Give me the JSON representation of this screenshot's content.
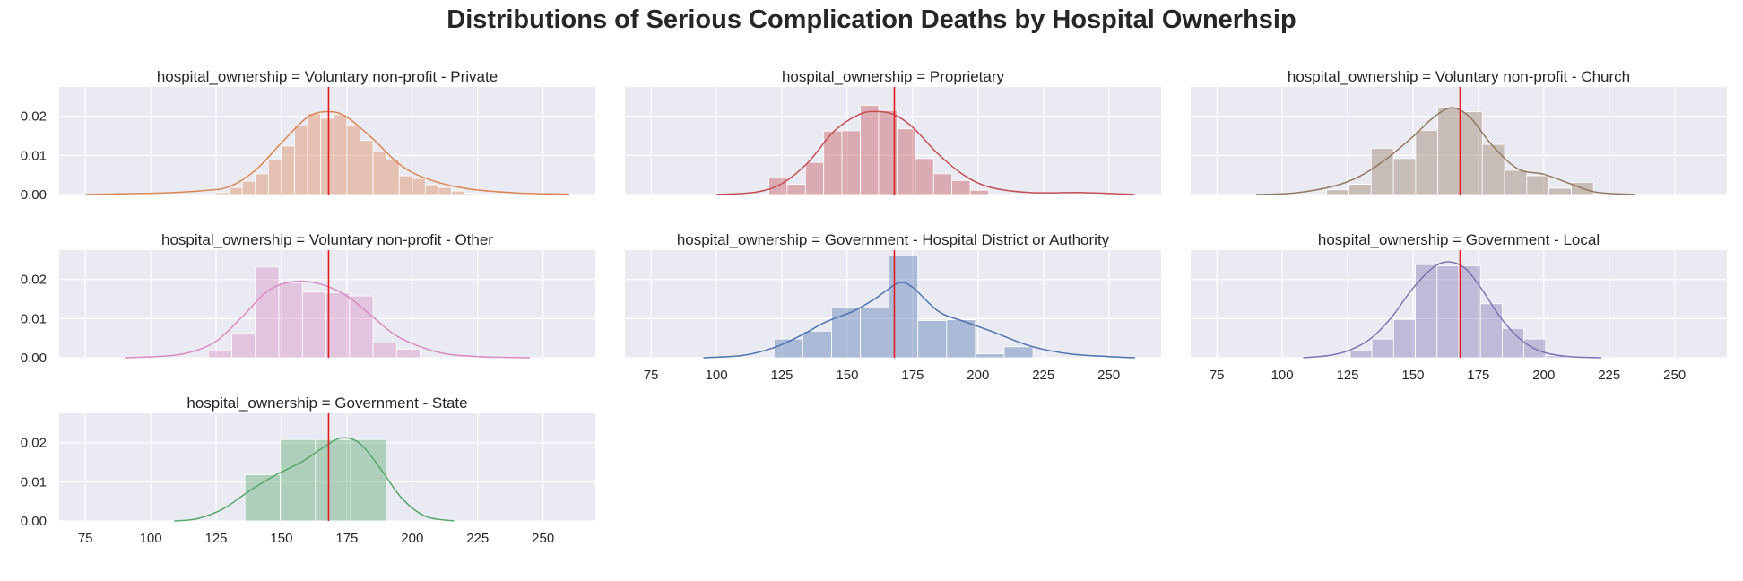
{
  "title": "Distributions of Serious Complication Deaths by Hospital Ownerhsip",
  "style": {
    "panel_background": "#eaeaf2",
    "grid_color": "#ffffff",
    "reference_line_color": "#e31a1c"
  },
  "chart_data": [
    {
      "type": "histogram",
      "title": "hospital_ownership = Voluntary non-profit - Private",
      "color": "#dd8452",
      "xlim": [
        65,
        270
      ],
      "ylim": [
        0,
        0.0275
      ],
      "xticks": [
        75,
        100,
        125,
        150,
        175,
        200,
        225,
        250
      ],
      "yticks": [
        0.0,
        0.01,
        0.02
      ],
      "ytick_labels": [
        "0.00",
        "0.01",
        "0.02"
      ],
      "show_xticks": false,
      "show_yticks": true,
      "reference_line": 168,
      "bins": {
        "edges": [
          125,
          130,
          135,
          140,
          145,
          150,
          155,
          160,
          165,
          170,
          175,
          180,
          185,
          190,
          195,
          200,
          205,
          210,
          215,
          220,
          225
        ],
        "values": [
          0.0005,
          0.0018,
          0.0034,
          0.0053,
          0.0089,
          0.0124,
          0.0175,
          0.0208,
          0.0195,
          0.0205,
          0.0178,
          0.0138,
          0.0109,
          0.0088,
          0.0048,
          0.0041,
          0.0025,
          0.0018,
          0.0009,
          0.0003
        ]
      },
      "kde": {
        "x": [
          75,
          90,
          105,
          120,
          130,
          140,
          150,
          160,
          168,
          175,
          185,
          195,
          205,
          220,
          240,
          260
        ],
        "y": [
          0.0,
          0.0002,
          0.0004,
          0.001,
          0.002,
          0.0062,
          0.0132,
          0.0198,
          0.0212,
          0.0198,
          0.0142,
          0.0078,
          0.0042,
          0.0016,
          0.0004,
          0.0001
        ]
      }
    },
    {
      "type": "histogram",
      "title": "hospital_ownership = Proprietary",
      "color": "#c44e52",
      "xlim": [
        65,
        270
      ],
      "ylim": [
        0,
        0.0275
      ],
      "xticks": [
        75,
        100,
        125,
        150,
        175,
        200,
        225,
        250
      ],
      "yticks": [
        0.0,
        0.01,
        0.02
      ],
      "ytick_labels": [
        "0.00",
        "0.01",
        "0.02"
      ],
      "show_xticks": false,
      "show_yticks": false,
      "reference_line": 168,
      "bins": {
        "edges": [
          120,
          127,
          134,
          141,
          148,
          155,
          162,
          169,
          176,
          183,
          190,
          197,
          204
        ],
        "values": [
          0.0042,
          0.0026,
          0.0082,
          0.0162,
          0.0163,
          0.0228,
          0.0215,
          0.0168,
          0.0092,
          0.0053,
          0.0036,
          0.0011
        ]
      },
      "kde": {
        "x": [
          100,
          115,
          125,
          135,
          145,
          155,
          162,
          168,
          175,
          185,
          195,
          205,
          220,
          240,
          260
        ],
        "y": [
          0.0,
          0.0006,
          0.0028,
          0.0082,
          0.0162,
          0.0206,
          0.0212,
          0.0204,
          0.0172,
          0.0102,
          0.0048,
          0.0018,
          0.0005,
          0.0005,
          0.0
        ]
      }
    },
    {
      "type": "histogram",
      "title": "hospital_ownership = Voluntary non-profit - Church",
      "color": "#937860",
      "xlim": [
        65,
        270
      ],
      "ylim": [
        0,
        0.0275
      ],
      "xticks": [
        75,
        100,
        125,
        150,
        175,
        200,
        225,
        250
      ],
      "yticks": [
        0.0,
        0.01,
        0.02
      ],
      "ytick_labels": [
        "0.00",
        "0.01",
        "0.02"
      ],
      "show_xticks": false,
      "show_yticks": false,
      "reference_line": 168,
      "bins": {
        "edges": [
          117,
          125.5,
          134,
          142.5,
          151,
          159.5,
          168,
          176.5,
          185,
          193.5,
          202,
          210.5,
          219
        ],
        "values": [
          0.0012,
          0.0026,
          0.0118,
          0.0092,
          0.0164,
          0.0222,
          0.0212,
          0.0128,
          0.0062,
          0.0048,
          0.0016,
          0.0031
        ]
      },
      "kde": {
        "x": [
          90,
          105,
          120,
          130,
          140,
          150,
          158,
          165,
          172,
          180,
          190,
          200,
          210,
          220,
          235
        ],
        "y": [
          0.0,
          0.0004,
          0.0022,
          0.0048,
          0.0092,
          0.0148,
          0.0198,
          0.0222,
          0.0196,
          0.0128,
          0.0066,
          0.0052,
          0.0028,
          0.0006,
          0.0
        ]
      }
    },
    {
      "type": "histogram",
      "title": "hospital_ownership = Voluntary non-profit - Other",
      "color": "#da8bc3",
      "xlim": [
        65,
        270
      ],
      "ylim": [
        0,
        0.0275
      ],
      "xticks": [
        75,
        100,
        125,
        150,
        175,
        200,
        225,
        250
      ],
      "yticks": [
        0.0,
        0.01,
        0.02
      ],
      "ytick_labels": [
        "0.00",
        "0.01",
        "0.02"
      ],
      "show_xticks": false,
      "show_yticks": true,
      "reference_line": 168,
      "bins": {
        "edges": [
          122,
          131,
          140,
          149,
          158,
          167,
          176,
          185,
          194,
          203
        ],
        "values": [
          0.002,
          0.0062,
          0.0232,
          0.0192,
          0.0168,
          0.0166,
          0.0158,
          0.0038,
          0.0022
        ]
      },
      "kde": {
        "x": [
          90,
          105,
          115,
          125,
          135,
          145,
          155,
          165,
          175,
          185,
          195,
          210,
          225,
          245
        ],
        "y": [
          0.0,
          0.0004,
          0.0014,
          0.0042,
          0.0105,
          0.0172,
          0.0195,
          0.0188,
          0.0158,
          0.0104,
          0.0052,
          0.0014,
          0.0003,
          0.0
        ]
      }
    },
    {
      "type": "histogram",
      "title": "hospital_ownership = Government - Hospital District or Authority",
      "color": "#4c72b0",
      "xlim": [
        65,
        270
      ],
      "ylim": [
        0,
        0.0275
      ],
      "xticks": [
        75,
        100,
        125,
        150,
        175,
        200,
        225,
        250
      ],
      "yticks": [
        0.0,
        0.01,
        0.02
      ],
      "ytick_labels": [
        "0.00",
        "0.01",
        "0.02"
      ],
      "show_xticks": true,
      "show_yticks": false,
      "reference_line": 168,
      "bins": {
        "edges": [
          122,
          133,
          144,
          155,
          166,
          177,
          188,
          199,
          210,
          221
        ],
        "values": [
          0.0048,
          0.0068,
          0.0128,
          0.013,
          0.026,
          0.0095,
          0.0097,
          0.001,
          0.0028
        ]
      },
      "kde": {
        "x": [
          95,
          110,
          122,
          132,
          142,
          152,
          160,
          165,
          170,
          175,
          185,
          195,
          205,
          220,
          235,
          250,
          260
        ],
        "y": [
          0.0,
          0.0006,
          0.0026,
          0.0056,
          0.0092,
          0.0118,
          0.0148,
          0.0172,
          0.0192,
          0.018,
          0.0118,
          0.0092,
          0.0068,
          0.003,
          0.001,
          0.0003,
          0.0
        ]
      }
    },
    {
      "type": "histogram",
      "title": "hospital_ownership = Government - Local",
      "color": "#8172b3",
      "xlim": [
        65,
        270
      ],
      "ylim": [
        0,
        0.0275
      ],
      "xticks": [
        75,
        100,
        125,
        150,
        175,
        200,
        225,
        250
      ],
      "yticks": [
        0.0,
        0.01,
        0.02
      ],
      "ytick_labels": [
        "0.00",
        "0.01",
        "0.02"
      ],
      "show_xticks": true,
      "show_yticks": false,
      "reference_line": 168,
      "bins": {
        "edges": [
          126,
          134.3,
          142.6,
          150.9,
          159.2,
          167.5,
          175.8,
          184.1,
          192.4,
          200.7,
          209
        ],
        "values": [
          0.0018,
          0.0048,
          0.0098,
          0.0238,
          0.0235,
          0.0235,
          0.0138,
          0.0075,
          0.0048,
          0.0005
        ]
      },
      "kde": {
        "x": [
          108,
          118,
          126,
          134,
          142,
          150,
          158,
          164,
          170,
          176,
          184,
          192,
          200,
          210,
          222
        ],
        "y": [
          0.0,
          0.0006,
          0.002,
          0.005,
          0.0105,
          0.0178,
          0.0232,
          0.0245,
          0.0228,
          0.0178,
          0.0098,
          0.0042,
          0.0014,
          0.0003,
          0.0
        ]
      }
    },
    {
      "type": "histogram",
      "title": "hospital_ownership = Government - State",
      "color": "#55a868",
      "xlim": [
        65,
        270
      ],
      "ylim": [
        0,
        0.0275
      ],
      "xticks": [
        75,
        100,
        125,
        150,
        175,
        200,
        225,
        250
      ],
      "yticks": [
        0.0,
        0.01,
        0.02
      ],
      "ytick_labels": [
        "0.00",
        "0.01",
        "0.02"
      ],
      "show_xticks": true,
      "show_yticks": true,
      "reference_line": 168,
      "bins": {
        "edges": [
          136,
          149.5,
          163,
          176.5,
          190
        ],
        "values": [
          0.0118,
          0.0208,
          0.0208,
          0.0208
        ]
      },
      "kde": {
        "x": [
          109,
          118,
          128,
          138,
          148,
          158,
          166,
          173,
          180,
          188,
          196,
          205,
          216
        ],
        "y": [
          0.0,
          0.0006,
          0.0032,
          0.0078,
          0.0118,
          0.0152,
          0.0188,
          0.0212,
          0.0198,
          0.0132,
          0.0058,
          0.0012,
          0.0
        ]
      }
    }
  ]
}
